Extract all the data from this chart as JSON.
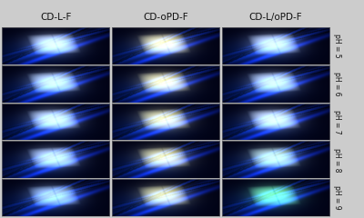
{
  "col_labels": [
    "CD-L-F",
    "CD-oPD-F",
    "CD-L/oPD-F"
  ],
  "row_labels": [
    "pH = 5",
    "pH = 6",
    "pH = 7",
    "pH = 8",
    "pH = 9"
  ],
  "label_color": "#111111",
  "fig_bg": "#cccccc",
  "col_label_fontsize": 7.5,
  "row_label_fontsize": 5.5,
  "n_rows": 5,
  "n_cols": 3,
  "sponge_colors": [
    [
      [
        0.82,
        0.9,
        0.98
      ],
      [
        0.78,
        0.88,
        0.97
      ],
      [
        0.8,
        0.89,
        0.97
      ],
      [
        0.75,
        0.85,
        0.96
      ],
      [
        0.65,
        0.78,
        0.92
      ]
    ],
    [
      [
        0.95,
        0.92,
        0.65
      ],
      [
        0.93,
        0.9,
        0.62
      ],
      [
        0.9,
        0.88,
        0.6
      ],
      [
        0.88,
        0.86,
        0.58
      ],
      [
        0.85,
        0.84,
        0.56
      ]
    ],
    [
      [
        0.8,
        0.88,
        0.97
      ],
      [
        0.78,
        0.87,
        0.96
      ],
      [
        0.82,
        0.89,
        0.95
      ],
      [
        0.75,
        0.88,
        0.8
      ],
      [
        0.45,
        0.9,
        0.6
      ]
    ]
  ]
}
